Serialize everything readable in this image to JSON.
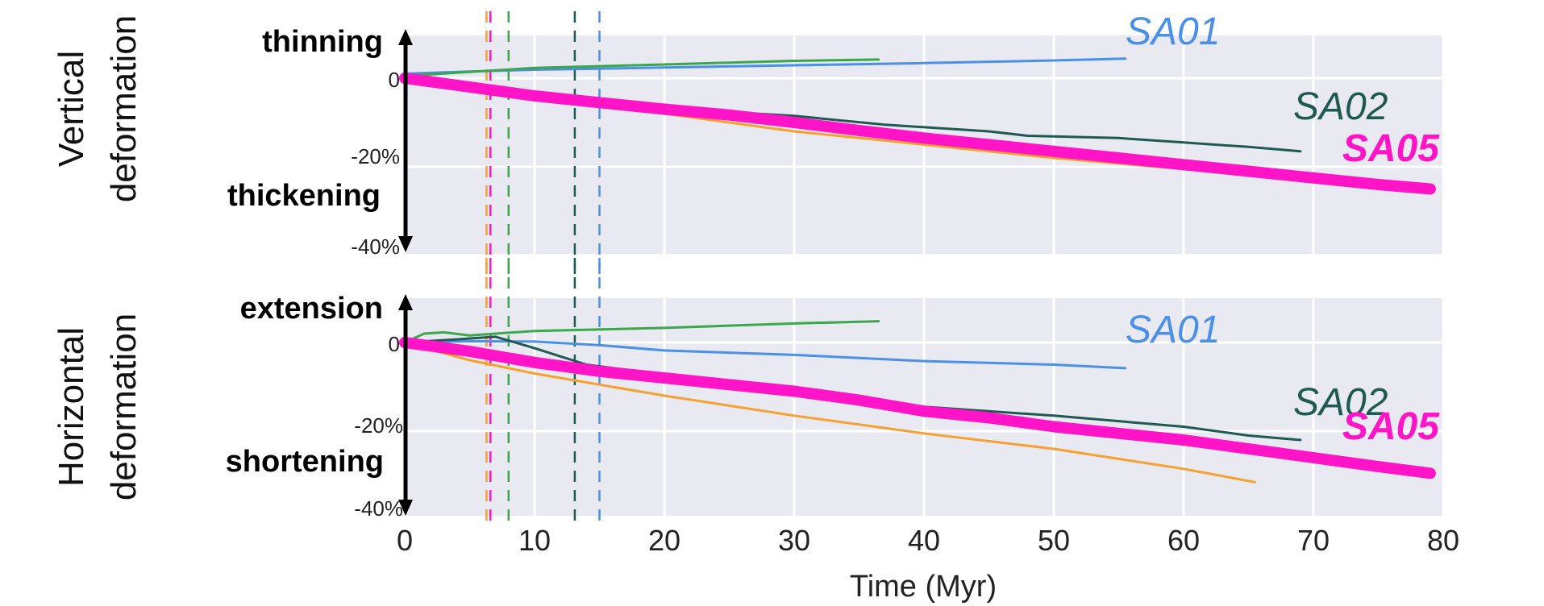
{
  "chart_data": {
    "type": "line",
    "xlabel": "Time (Myr)",
    "x_ticks": [
      "0",
      "10",
      "20",
      "30",
      "40",
      "50",
      "60",
      "70",
      "80"
    ],
    "xlim": [
      0,
      80
    ],
    "grid": true,
    "background": "#e9e9f2",
    "series_colors": {
      "SA01": "#4a8fe8",
      "SA02": "#1f5a52",
      "SA05": "#ff14c8",
      "green": "#3aa84a",
      "orange": "#f7a030"
    },
    "vlines": [
      {
        "x": 6.3,
        "color": "#f7a030"
      },
      {
        "x": 6.6,
        "color": "#ff14c8"
      },
      {
        "x": 8.0,
        "color": "#3aa84a"
      },
      {
        "x": 13.1,
        "color": "#1f5a52"
      },
      {
        "x": 15.0,
        "color": "#4a8fe8"
      }
    ],
    "panels": [
      {
        "row_title": [
          "Vertical",
          "deformation"
        ],
        "top_label": "thinning",
        "bottom_label": "thickening",
        "y_ticks": [
          "0",
          "-20%",
          "-40%"
        ],
        "ylim": [
          -40,
          10
        ],
        "series": [
          {
            "name": "SA01",
            "color": "#4a8fe8",
            "width": 3,
            "label": "SA01",
            "x": [
              0,
              5,
              10,
              20,
              30,
              40,
              50,
              55.5
            ],
            "y": [
              1,
              1.5,
              1.9,
              2.4,
              2.9,
              3.4,
              4.0,
              4.4
            ]
          },
          {
            "color": "#3aa84a",
            "width": 3,
            "x": [
              0,
              5,
              10,
              20,
              30,
              36.5
            ],
            "y": [
              0.5,
              1.4,
              2.3,
              3.1,
              3.9,
              4.2
            ]
          },
          {
            "name": "SA02",
            "color": "#1f5a52",
            "width": 3,
            "label": "SA02",
            "x": [
              0,
              5,
              10,
              15,
              20,
              30,
              37,
              45,
              48,
              55,
              60,
              65,
              69
            ],
            "y": [
              1,
              -1.5,
              -3.5,
              -5.5,
              -6.8,
              -8.5,
              -10.5,
              -12,
              -13,
              -13.5,
              -14.5,
              -15.5,
              -16.5
            ]
          },
          {
            "color": "#f7a030",
            "width": 3,
            "x": [
              0,
              5,
              10,
              15,
              20,
              30,
              40,
              50,
              60,
              65.5
            ],
            "y": [
              1,
              -2,
              -4,
              -6,
              -8,
              -12,
              -15,
              -18,
              -20.5,
              -22
            ]
          },
          {
            "name": "SA05",
            "color": "#ff14c8",
            "width": 14,
            "label": "SA05",
            "x": [
              0,
              5,
              10,
              15,
              20,
              25,
              30,
              35,
              40,
              45,
              50,
              55,
              60,
              65,
              70,
              75,
              79
            ],
            "y": [
              0,
              -2,
              -4,
              -5.5,
              -7,
              -8.3,
              -10,
              -11.8,
              -13.5,
              -15,
              -16.5,
              -18,
              -19.5,
              -21,
              -22.5,
              -24,
              -25
            ]
          }
        ]
      },
      {
        "row_title": [
          "Horizontal",
          "deformation"
        ],
        "top_label": "extension",
        "bottom_label": "shortening",
        "y_ticks": [
          "0",
          "-20%",
          "-40%"
        ],
        "ylim": [
          -40,
          10
        ],
        "series": [
          {
            "name": "SA01",
            "color": "#4a8fe8",
            "width": 3,
            "label": "SA01",
            "x": [
              0,
              5,
              10,
              15,
              20,
              30,
              40,
              50,
              55.5
            ],
            "y": [
              0,
              0.3,
              0.2,
              -0.6,
              -1.8,
              -2.8,
              -4.2,
              -5,
              -5.8
            ]
          },
          {
            "color": "#3aa84a",
            "width": 3,
            "x": [
              0,
              1.5,
              3,
              5,
              10,
              20,
              30,
              36.5
            ],
            "y": [
              0,
              2,
              2.3,
              1.6,
              2.6,
              3.3,
              4.3,
              4.8
            ]
          },
          {
            "name": "SA02",
            "color": "#1f5a52",
            "width": 3,
            "label": "SA02",
            "x": [
              0,
              4,
              7,
              10,
              14,
              20,
              30,
              40,
              50,
              60,
              65,
              69
            ],
            "y": [
              0,
              0.7,
              1.3,
              -1.3,
              -5,
              -7.3,
              -10.5,
              -14.5,
              -16.5,
              -19,
              -21,
              -22
            ]
          },
          {
            "color": "#f7a030",
            "width": 3,
            "x": [
              0,
              5,
              10,
              15,
              20,
              30,
              40,
              50,
              60,
              65.5
            ],
            "y": [
              0,
              -4,
              -7,
              -9.5,
              -12,
              -16.5,
              -20.5,
              -24,
              -28.5,
              -31.5
            ]
          },
          {
            "name": "SA05",
            "color": "#ff14c8",
            "width": 14,
            "label": "SA05",
            "x": [
              0,
              5,
              10,
              15,
              20,
              25,
              30,
              35,
              40,
              45,
              50,
              55,
              60,
              65,
              70,
              75,
              79
            ],
            "y": [
              0,
              -2,
              -4.5,
              -6.5,
              -8,
              -9.5,
              -11,
              -13,
              -15.5,
              -17,
              -19,
              -20.5,
              -22,
              -24,
              -26,
              -28,
              -29.5
            ]
          }
        ]
      }
    ]
  }
}
